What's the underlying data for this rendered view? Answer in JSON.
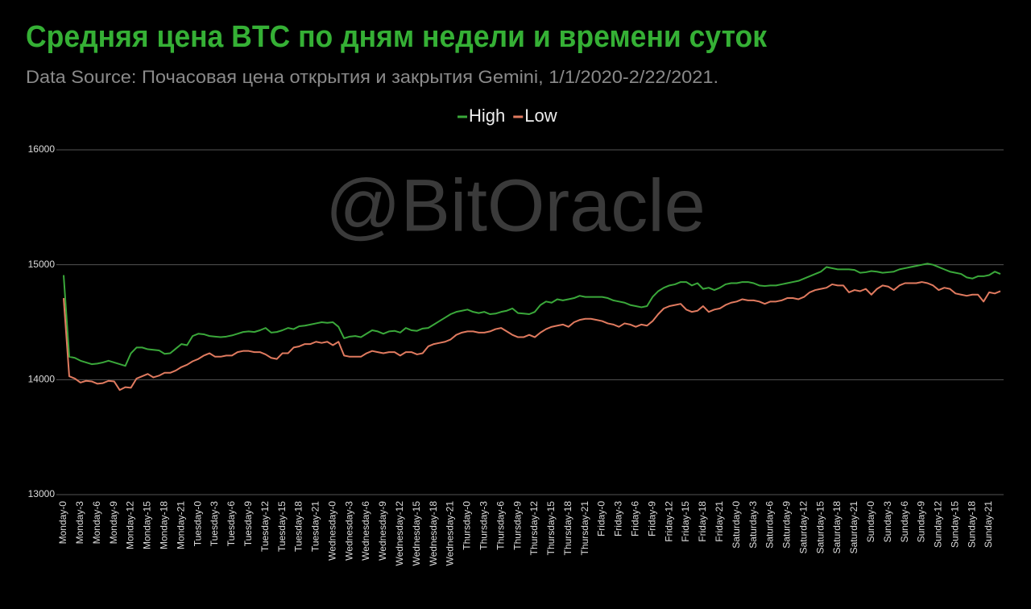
{
  "chart_data": {
    "type": "line",
    "title": "Средняя цена BTC по дням недели и времени суток",
    "subtitle": "Data Source: Почасовая цена открытия и закрытия Gemini, 1/1/2020-2/22/2021.",
    "watermark": "@BitOracle",
    "legend_position": "top",
    "grid": true,
    "ylim": [
      13000,
      16000
    ],
    "yticks": [
      13000,
      14000,
      15000,
      16000
    ],
    "categories": [
      "Monday-0",
      null,
      null,
      "Monday-3",
      null,
      null,
      "Monday-6",
      null,
      null,
      "Monday-9",
      null,
      null,
      "Monday-12",
      null,
      null,
      "Monday-15",
      null,
      null,
      "Monday-18",
      null,
      null,
      "Monday-21",
      null,
      null,
      "Tuesday-0",
      null,
      null,
      "Tuesday-3",
      null,
      null,
      "Tuesday-6",
      null,
      null,
      "Tuesday-9",
      null,
      null,
      "Tuesday-12",
      null,
      null,
      "Tuesday-15",
      null,
      null,
      "Tuesday-18",
      null,
      null,
      "Tuesday-21",
      null,
      null,
      "Wednesday-0",
      null,
      null,
      "Wednesday-3",
      null,
      null,
      "Wednesday-6",
      null,
      null,
      "Wednesday-9",
      null,
      null,
      "Wednesday-12",
      null,
      null,
      "Wednesday-15",
      null,
      null,
      "Wednesday-18",
      null,
      null,
      "Wednesday-21",
      null,
      null,
      "Thursday-0",
      null,
      null,
      "Thursday-3",
      null,
      null,
      "Thursday-6",
      null,
      null,
      "Thursday-9",
      null,
      null,
      "Thursday-12",
      null,
      null,
      "Thursday-15",
      null,
      null,
      "Thursday-18",
      null,
      null,
      "Thursday-21",
      null,
      null,
      "Friday-0",
      null,
      null,
      "Friday-3",
      null,
      null,
      "Friday-6",
      null,
      null,
      "Friday-9",
      null,
      null,
      "Friday-12",
      null,
      null,
      "Friday-15",
      null,
      null,
      "Friday-18",
      null,
      null,
      "Friday-21",
      null,
      null,
      "Saturday-0",
      null,
      null,
      "Saturday-3",
      null,
      null,
      "Saturday-6",
      null,
      null,
      "Saturday-9",
      null,
      null,
      "Saturday-12",
      null,
      null,
      "Saturday-15",
      null,
      null,
      "Saturday-18",
      null,
      null,
      "Saturday-21",
      null,
      null,
      "Sunday-0",
      null,
      null,
      "Sunday-3",
      null,
      null,
      "Sunday-6",
      null,
      null,
      "Sunday-9",
      null,
      null,
      "Sunday-12",
      null,
      null,
      "Sunday-15",
      null,
      null,
      "Sunday-18",
      null,
      null,
      "Sunday-21",
      null,
      null
    ],
    "series": [
      {
        "name": "High",
        "color": "#3aa83a",
        "values": [
          14910,
          14200,
          14190,
          14165,
          14150,
          14135,
          14140,
          14150,
          14165,
          14150,
          14135,
          14120,
          14230,
          14280,
          14280,
          14265,
          14260,
          14255,
          14225,
          14230,
          14270,
          14310,
          14300,
          14380,
          14400,
          14395,
          14380,
          14375,
          14370,
          14375,
          14385,
          14400,
          14415,
          14420,
          14415,
          14430,
          14450,
          14410,
          14415,
          14430,
          14450,
          14440,
          14465,
          14470,
          14480,
          14490,
          14500,
          14495,
          14500,
          14460,
          14360,
          14375,
          14380,
          14370,
          14400,
          14430,
          14420,
          14400,
          14420,
          14425,
          14410,
          14450,
          14430,
          14425,
          14445,
          14450,
          14480,
          14510,
          14540,
          14570,
          14590,
          14600,
          14610,
          14590,
          14580,
          14590,
          14570,
          14575,
          14590,
          14600,
          14620,
          14580,
          14575,
          14570,
          14590,
          14650,
          14680,
          14670,
          14700,
          14690,
          14700,
          14710,
          14730,
          14720,
          14720,
          14720,
          14720,
          14710,
          14690,
          14680,
          14670,
          14650,
          14640,
          14630,
          14640,
          14720,
          14770,
          14800,
          14820,
          14830,
          14850,
          14850,
          14820,
          14840,
          14790,
          14800,
          14780,
          14800,
          14830,
          14840,
          14840,
          14850,
          14850,
          14840,
          14820,
          14815,
          14820,
          14820,
          14830,
          14840,
          14850,
          14860,
          14880,
          14900,
          14920,
          14940,
          14980,
          14970,
          14960,
          14960,
          14960,
          14955,
          14930,
          14935,
          14945,
          14940,
          14930,
          14935,
          14940,
          14960,
          14970,
          14980,
          14990,
          15000,
          15010,
          15000,
          14980,
          14960,
          14940,
          14930,
          14920,
          14890,
          14880,
          14900,
          14900,
          14910,
          14940,
          14920
        ]
      },
      {
        "name": "Low",
        "color": "#e07a5f",
        "values": [
          14710,
          14030,
          14010,
          13975,
          13990,
          13985,
          13965,
          13970,
          13990,
          13985,
          13910,
          13935,
          13930,
          14010,
          14030,
          14050,
          14020,
          14035,
          14060,
          14060,
          14080,
          14110,
          14130,
          14160,
          14180,
          14210,
          14230,
          14200,
          14200,
          14210,
          14210,
          14240,
          14250,
          14250,
          14240,
          14240,
          14220,
          14190,
          14180,
          14230,
          14230,
          14280,
          14290,
          14310,
          14310,
          14330,
          14320,
          14330,
          14300,
          14330,
          14210,
          14200,
          14200,
          14200,
          14230,
          14250,
          14240,
          14230,
          14240,
          14240,
          14210,
          14240,
          14240,
          14220,
          14230,
          14290,
          14310,
          14320,
          14330,
          14350,
          14390,
          14410,
          14420,
          14420,
          14410,
          14410,
          14420,
          14440,
          14450,
          14420,
          14390,
          14370,
          14370,
          14390,
          14370,
          14410,
          14440,
          14460,
          14470,
          14480,
          14460,
          14500,
          14520,
          14530,
          14530,
          14520,
          14510,
          14490,
          14480,
          14460,
          14490,
          14480,
          14460,
          14480,
          14470,
          14510,
          14570,
          14620,
          14640,
          14650,
          14660,
          14610,
          14590,
          14600,
          14640,
          14590,
          14610,
          14620,
          14650,
          14670,
          14680,
          14700,
          14690,
          14690,
          14680,
          14660,
          14680,
          14680,
          14690,
          14710,
          14710,
          14700,
          14720,
          14760,
          14780,
          14790,
          14800,
          14830,
          14820,
          14820,
          14760,
          14780,
          14770,
          14790,
          14740,
          14790,
          14820,
          14810,
          14780,
          14820,
          14840,
          14840,
          14840,
          14850,
          14840,
          14820,
          14780,
          14800,
          14790,
          14750,
          14740,
          14730,
          14740,
          14740,
          14680,
          14760,
          14750,
          14770
        ]
      }
    ]
  }
}
